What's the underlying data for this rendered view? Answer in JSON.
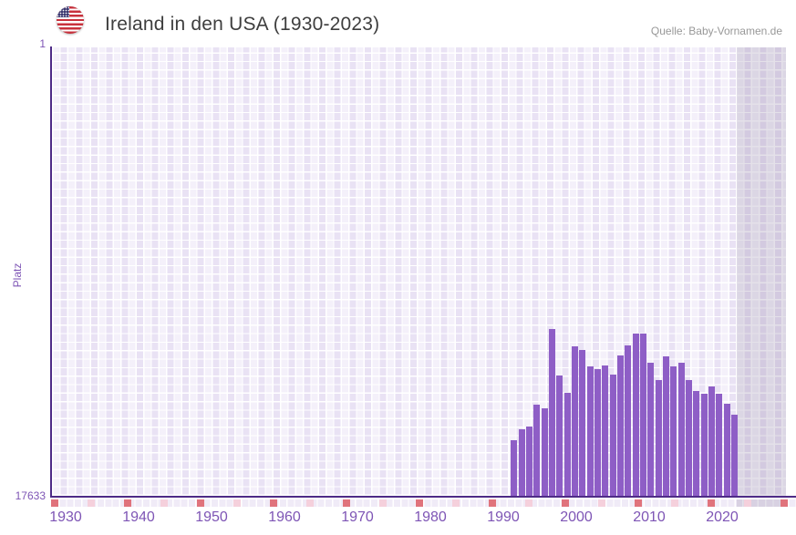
{
  "header": {
    "flag_icon": "us-flag-round-icon",
    "title": "Ireland in den USA (1930-2023)",
    "source": "Quelle: Baby-Vornamen.de"
  },
  "y_axis": {
    "label": "Platz",
    "top_tick": "1",
    "bottom_tick": "17633"
  },
  "chart_data": {
    "type": "bar",
    "title": "Ireland in den USA (1930-2023)",
    "ylabel": "Platz",
    "y_min": 1,
    "y_max": 17633,
    "y_inverted": true,
    "x_range": [
      1930,
      2023
    ],
    "x_ticks": [
      "1930",
      "1940",
      "1950",
      "1960",
      "1970",
      "1980",
      "1990",
      "2000",
      "2010",
      "2020"
    ],
    "grid": true,
    "legend": false,
    "categories": [
      1993,
      1994,
      1995,
      1996,
      1997,
      1998,
      1999,
      2000,
      2001,
      2002,
      2003,
      2004,
      2005,
      2006,
      2007,
      2008,
      2009,
      2010,
      2011,
      2012,
      2013,
      2014,
      2015,
      2016,
      2017,
      2018,
      2019,
      2020,
      2021,
      2022
    ],
    "values": [
      15448,
      15018,
      14911,
      14050,
      14194,
      11075,
      12903,
      13584,
      11757,
      11900,
      12545,
      12653,
      12509,
      12868,
      12115,
      11721,
      11255,
      11255,
      12402,
      13083,
      12151,
      12545,
      12402,
      13083,
      13513,
      13620,
      13334,
      13620,
      14014,
      14444
    ]
  },
  "colors": {
    "bar": "#8e5ec6",
    "axis_line": "#4e2b87",
    "tick_label": "#7e55b5",
    "grid_cell": "#e9e2f4",
    "no_data_band": "#d8d2e4",
    "decade_marker": "#e0737c",
    "half_decade_marker": "#f5d0dc",
    "title_text": "#3e3e3e",
    "source_text": "#989898"
  }
}
